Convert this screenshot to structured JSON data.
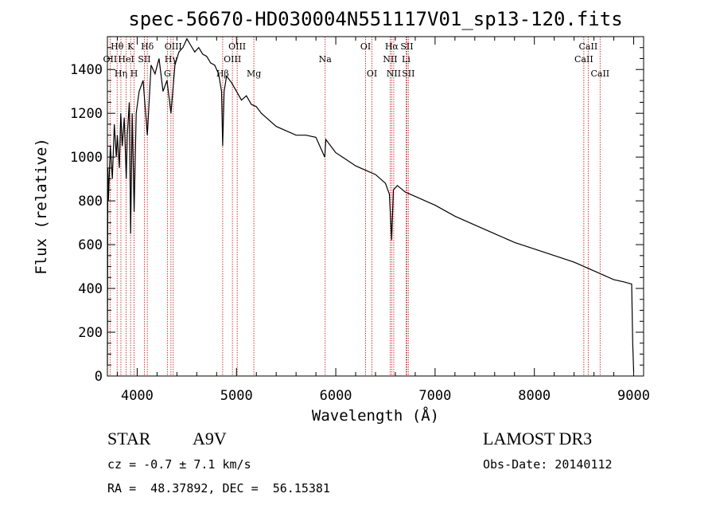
{
  "chart_data": {
    "type": "line",
    "title": "spec-56670-HD030004N551117V01_sp13-120.fits",
    "xlabel": "Wavelength (Å)",
    "ylabel": "Flux (relative)",
    "xlim": [
      3700,
      9100
    ],
    "ylim": [
      0,
      1550
    ],
    "xticks": [
      4000,
      5000,
      6000,
      7000,
      8000,
      9000
    ],
    "yticks": [
      0,
      200,
      400,
      600,
      800,
      1000,
      1200,
      1400
    ],
    "x_tick_labels": [
      "4000",
      "5000",
      "6000",
      "7000",
      "8000",
      "9000"
    ],
    "y_tick_labels": [
      "0",
      "200",
      "400",
      "600",
      "800",
      "1000",
      "1200",
      "1400"
    ],
    "series": [
      {
        "name": "spectrum",
        "x": [
          3700,
          3705,
          3710,
          3730,
          3750,
          3770,
          3790,
          3800,
          3820,
          3835,
          3850,
          3870,
          3890,
          3900,
          3920,
          3934,
          3950,
          3969,
          3990,
          4020,
          4060,
          4102,
          4140,
          4180,
          4220,
          4260,
          4300,
          4340,
          4380,
          4420,
          4460,
          4500,
          4540,
          4580,
          4620,
          4660,
          4700,
          4740,
          4780,
          4820,
          4850,
          4861,
          4875,
          4900,
          4950,
          5000,
          5050,
          5100,
          5150,
          5200,
          5250,
          5300,
          5400,
          5500,
          5600,
          5700,
          5800,
          5889,
          5900,
          5950,
          6000,
          6100,
          6200,
          6300,
          6400,
          6500,
          6540,
          6563,
          6580,
          6620,
          6700,
          6800,
          7000,
          7200,
          7400,
          7600,
          7800,
          8000,
          8200,
          8400,
          8500,
          8600,
          8700,
          8800,
          8900,
          8980,
          8990,
          9000
        ],
        "y": [
          50,
          950,
          800,
          1050,
          900,
          1150,
          1000,
          1100,
          950,
          1200,
          1050,
          1180,
          900,
          1100,
          1250,
          650,
          1200,
          750,
          1200,
          1300,
          1350,
          1100,
          1420,
          1380,
          1450,
          1300,
          1350,
          1200,
          1420,
          1480,
          1500,
          1540,
          1510,
          1480,
          1500,
          1470,
          1460,
          1430,
          1420,
          1380,
          1300,
          1050,
          1300,
          1370,
          1340,
          1300,
          1260,
          1280,
          1240,
          1230,
          1200,
          1180,
          1140,
          1120,
          1100,
          1100,
          1090,
          1000,
          1080,
          1050,
          1020,
          990,
          960,
          940,
          920,
          880,
          830,
          620,
          850,
          870,
          840,
          820,
          780,
          730,
          690,
          650,
          610,
          580,
          550,
          520,
          500,
          480,
          460,
          440,
          430,
          420,
          150,
          20
        ],
        "color": "#000000"
      }
    ],
    "lines": [
      {
        "label": "Hθ",
        "x": 3798,
        "row": 1
      },
      {
        "label": "OII",
        "x": 3727,
        "row": 2
      },
      {
        "label": "Hη",
        "x": 3836,
        "row": 3
      },
      {
        "label": "K",
        "x": 3934,
        "row": 1
      },
      {
        "label": "HeI",
        "x": 3889,
        "row": 2
      },
      {
        "label": "H",
        "x": 3969,
        "row": 3
      },
      {
        "label": "Hδ",
        "x": 4102,
        "row": 1
      },
      {
        "label": "SII",
        "x": 4072,
        "row": 2
      },
      {
        "label": "OIII",
        "x": 4363,
        "row": 1
      },
      {
        "label": "Hγ",
        "x": 4340,
        "row": 2
      },
      {
        "label": "G",
        "x": 4304,
        "row": 3
      },
      {
        "label": "OIII",
        "x": 5007,
        "row": 1
      },
      {
        "label": "OIII",
        "x": 4959,
        "row": 2
      },
      {
        "label": "Hβ",
        "x": 4861,
        "row": 3
      },
      {
        "label": "Mg",
        "x": 5175,
        "row": 3
      },
      {
        "label": "Na",
        "x": 5893,
        "row": 2
      },
      {
        "label": "OI",
        "x": 6300,
        "row": 1
      },
      {
        "label": "OI",
        "x": 6364,
        "row": 3
      },
      {
        "label": "Hα",
        "x": 6563,
        "row": 1
      },
      {
        "label": "SII",
        "x": 6716,
        "row": 1
      },
      {
        "label": "NII",
        "x": 6548,
        "row": 2
      },
      {
        "label": "Li",
        "x": 6708,
        "row": 2
      },
      {
        "label": "NII",
        "x": 6584,
        "row": 3
      },
      {
        "label": "SII",
        "x": 6731,
        "row": 3
      },
      {
        "label": "CaII",
        "x": 8542,
        "row": 1
      },
      {
        "label": "CaII",
        "x": 8498,
        "row": 2
      },
      {
        "label": "CaII",
        "x": 8662,
        "row": 3
      }
    ],
    "line_color": "#cc2222"
  },
  "info": {
    "object_class": "STAR",
    "subclass": "A9V",
    "survey": "LAMOST DR3",
    "cz": "cz = -0.7 ± 7.1 km/s",
    "obs_date": "Obs-Date: 20140112",
    "coords": "RA =  48.37892, DEC =  56.15381"
  }
}
